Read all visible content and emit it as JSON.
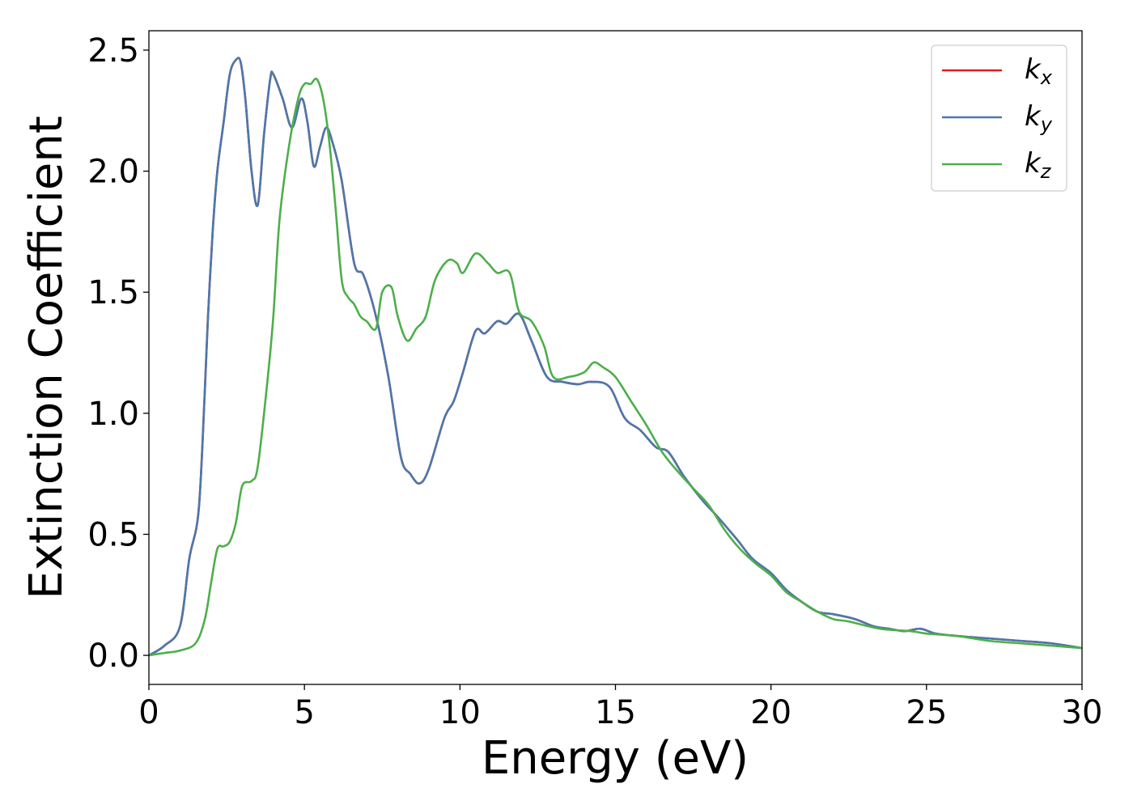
{
  "chart_data": {
    "type": "line",
    "title": "",
    "xlabel": "Energy (eV)",
    "ylabel": "Extinction Coefficient",
    "xlim": [
      0,
      30
    ],
    "ylim": [
      -0.12,
      2.58
    ],
    "xticks": [
      0,
      5,
      10,
      15,
      20,
      25,
      30
    ],
    "xtick_labels": [
      "0",
      "5",
      "10",
      "15",
      "20",
      "25",
      "30"
    ],
    "yticks": [
      0.0,
      0.5,
      1.0,
      1.5,
      2.0,
      2.5
    ],
    "ytick_labels": [
      "0.0",
      "0.5",
      "1.0",
      "1.5",
      "2.0",
      "2.5"
    ],
    "grid": false,
    "legend_position": "top-right",
    "series": [
      {
        "name": "k",
        "subscript": "x",
        "color": "#e41a1c",
        "x": [
          0,
          0.5,
          1.0,
          1.3,
          1.6,
          1.8,
          1.9,
          2.05,
          2.2,
          2.4,
          2.6,
          2.8,
          2.95,
          3.1,
          3.3,
          3.5,
          3.7,
          3.9,
          4.0,
          4.3,
          4.6,
          4.9,
          5.1,
          5.3,
          5.5,
          5.7,
          5.9,
          6.2,
          6.6,
          6.9,
          7.3,
          7.7,
          8.1,
          8.4,
          8.7,
          9.0,
          9.5,
          9.8,
          10.1,
          10.5,
          10.8,
          11.2,
          11.5,
          11.9,
          12.3,
          12.8,
          13.3,
          13.8,
          14.2,
          14.8,
          15.3,
          15.8,
          16.3,
          16.7,
          17.2,
          17.8,
          18.3,
          18.9,
          19.4,
          20.0,
          20.5,
          21.0,
          21.5,
          22.0,
          22.7,
          23.3,
          23.8,
          24.3,
          24.8,
          25.3,
          26.0,
          27.0,
          28.0,
          29.0,
          30.0
        ],
        "y": [
          0.0,
          0.04,
          0.12,
          0.4,
          0.6,
          1.1,
          1.4,
          1.75,
          2.0,
          2.2,
          2.4,
          2.46,
          2.45,
          2.3,
          2.0,
          1.86,
          2.15,
          2.38,
          2.4,
          2.3,
          2.18,
          2.3,
          2.2,
          2.02,
          2.1,
          2.18,
          2.12,
          1.96,
          1.62,
          1.57,
          1.4,
          1.15,
          0.82,
          0.75,
          0.71,
          0.77,
          0.98,
          1.05,
          1.17,
          1.34,
          1.33,
          1.38,
          1.37,
          1.41,
          1.3,
          1.15,
          1.13,
          1.12,
          1.13,
          1.11,
          0.98,
          0.93,
          0.86,
          0.84,
          0.74,
          0.64,
          0.57,
          0.48,
          0.4,
          0.34,
          0.27,
          0.22,
          0.18,
          0.17,
          0.15,
          0.12,
          0.11,
          0.1,
          0.11,
          0.09,
          0.08,
          0.07,
          0.06,
          0.05,
          0.03
        ]
      },
      {
        "name": "k",
        "subscript": "y",
        "color": "#4a78ad",
        "x": [
          0,
          0.5,
          1.0,
          1.3,
          1.6,
          1.8,
          1.9,
          2.05,
          2.2,
          2.4,
          2.6,
          2.8,
          2.95,
          3.1,
          3.3,
          3.5,
          3.7,
          3.9,
          4.0,
          4.3,
          4.6,
          4.9,
          5.1,
          5.3,
          5.5,
          5.7,
          5.9,
          6.2,
          6.6,
          6.9,
          7.3,
          7.7,
          8.1,
          8.4,
          8.7,
          9.0,
          9.5,
          9.8,
          10.1,
          10.5,
          10.8,
          11.2,
          11.5,
          11.9,
          12.3,
          12.8,
          13.3,
          13.8,
          14.2,
          14.8,
          15.3,
          15.8,
          16.3,
          16.7,
          17.2,
          17.8,
          18.3,
          18.9,
          19.4,
          20.0,
          20.5,
          21.0,
          21.5,
          22.0,
          22.7,
          23.3,
          23.8,
          24.3,
          24.8,
          25.3,
          26.0,
          27.0,
          28.0,
          29.0,
          30.0
        ],
        "y": [
          0.0,
          0.04,
          0.12,
          0.4,
          0.6,
          1.1,
          1.4,
          1.75,
          2.0,
          2.2,
          2.4,
          2.46,
          2.45,
          2.3,
          2.0,
          1.86,
          2.15,
          2.38,
          2.4,
          2.3,
          2.18,
          2.3,
          2.2,
          2.02,
          2.1,
          2.18,
          2.12,
          1.96,
          1.62,
          1.57,
          1.4,
          1.15,
          0.82,
          0.75,
          0.71,
          0.77,
          0.98,
          1.05,
          1.17,
          1.34,
          1.33,
          1.38,
          1.37,
          1.41,
          1.3,
          1.15,
          1.13,
          1.12,
          1.13,
          1.11,
          0.98,
          0.93,
          0.86,
          0.84,
          0.74,
          0.64,
          0.57,
          0.48,
          0.4,
          0.34,
          0.27,
          0.22,
          0.18,
          0.17,
          0.15,
          0.12,
          0.11,
          0.1,
          0.11,
          0.09,
          0.08,
          0.07,
          0.06,
          0.05,
          0.03
        ]
      },
      {
        "name": "k",
        "subscript": "z",
        "color": "#4daf4a",
        "x": [
          0,
          0.5,
          1.0,
          1.5,
          1.8,
          2.0,
          2.2,
          2.4,
          2.6,
          2.8,
          3.0,
          3.3,
          3.5,
          3.8,
          4.0,
          4.2,
          4.5,
          4.8,
          5.0,
          5.2,
          5.4,
          5.6,
          5.8,
          6.0,
          6.2,
          6.4,
          6.6,
          6.8,
          7.0,
          7.3,
          7.5,
          7.8,
          8.0,
          8.3,
          8.6,
          8.9,
          9.2,
          9.6,
          9.9,
          10.1,
          10.5,
          10.9,
          11.2,
          11.6,
          11.9,
          12.3,
          12.7,
          13.0,
          13.5,
          14.0,
          14.3,
          14.6,
          15.0,
          15.5,
          16.0,
          16.5,
          17.0,
          17.5,
          18.0,
          18.5,
          19.0,
          19.5,
          20.0,
          20.5,
          21.0,
          21.5,
          22.0,
          22.5,
          23.5,
          24.5,
          25.0,
          26.0,
          27.0,
          28.0,
          29.0,
          30.0
        ],
        "y": [
          0.0,
          0.01,
          0.02,
          0.05,
          0.15,
          0.3,
          0.44,
          0.45,
          0.47,
          0.55,
          0.7,
          0.72,
          0.78,
          1.12,
          1.4,
          1.8,
          2.1,
          2.3,
          2.36,
          2.36,
          2.38,
          2.3,
          2.12,
          1.85,
          1.55,
          1.48,
          1.45,
          1.4,
          1.38,
          1.35,
          1.5,
          1.52,
          1.4,
          1.3,
          1.35,
          1.4,
          1.55,
          1.63,
          1.62,
          1.58,
          1.66,
          1.62,
          1.58,
          1.58,
          1.42,
          1.38,
          1.28,
          1.15,
          1.15,
          1.17,
          1.21,
          1.19,
          1.15,
          1.05,
          0.95,
          0.84,
          0.76,
          0.69,
          0.62,
          0.52,
          0.44,
          0.38,
          0.33,
          0.26,
          0.22,
          0.18,
          0.15,
          0.14,
          0.11,
          0.1,
          0.09,
          0.08,
          0.06,
          0.05,
          0.04,
          0.03
        ]
      }
    ]
  }
}
